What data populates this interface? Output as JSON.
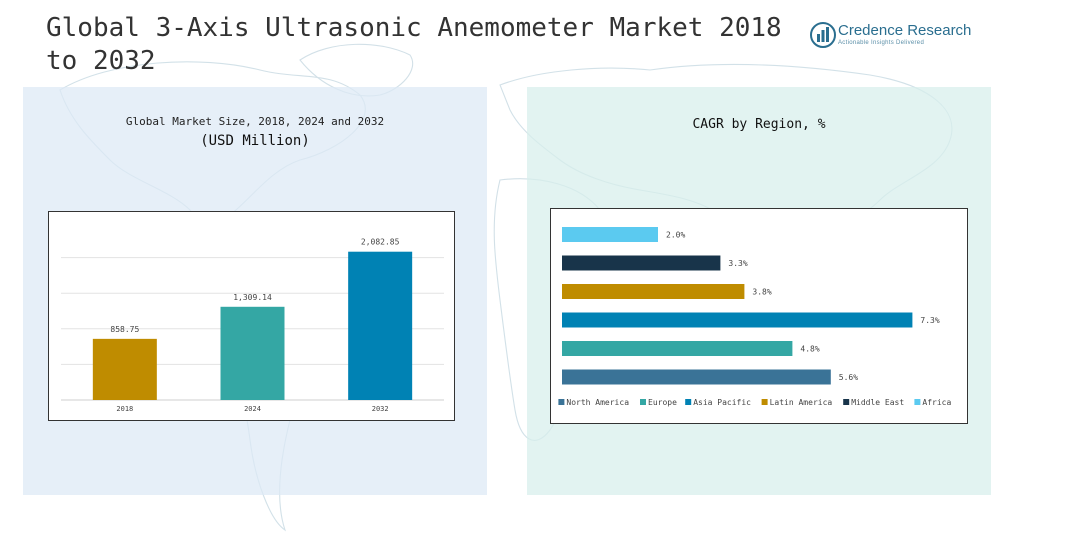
{
  "title": "Global 3-Axis Ultrasonic Anemometer Market 2018 to 2032",
  "logo": {
    "name": "Credence Research",
    "tagline": "Actionable Insights Delivered",
    "icon": "bar-chart-icon"
  },
  "chart_data": [
    {
      "type": "bar",
      "title": "Global Market Size, 2018, 2024 and 2032",
      "subtitle": "(USD Million)",
      "categories": [
        "2018",
        "2024",
        "2032"
      ],
      "values": [
        858.75,
        1309.14,
        2082.85
      ],
      "value_labels": [
        "858.75",
        "1,309.14",
        "2,082.85"
      ],
      "colors": [
        "#bf8c00",
        "#34a7a4",
        "#0082b4"
      ],
      "xlabel": "",
      "ylabel": "",
      "ylim": [
        0,
        2500
      ],
      "grid": true
    },
    {
      "type": "bar",
      "orientation": "horizontal",
      "title": "CAGR by Region, %",
      "categories": [
        "Africa",
        "Middle East",
        "Latin America",
        "Asia Pacific",
        "Europe",
        "North America"
      ],
      "values": [
        2.0,
        3.3,
        3.8,
        7.3,
        4.8,
        5.6
      ],
      "value_labels": [
        "2.0%",
        "3.3%",
        "3.8%",
        "7.3%",
        "4.8%",
        "5.6%"
      ],
      "colors": [
        "#5bcaf0",
        "#18344a",
        "#bf8c00",
        "#0082b4",
        "#34a7a4",
        "#3a7397"
      ],
      "legend": {
        "placement": "bottom",
        "entries": [
          {
            "name": "North America",
            "color": "#3a7397"
          },
          {
            "name": "Europe",
            "color": "#34a7a4"
          },
          {
            "name": "Asia Pacific",
            "color": "#0082b4"
          },
          {
            "name": "Latin America",
            "color": "#bf8c00"
          },
          {
            "name": "Middle East",
            "color": "#18344a"
          },
          {
            "name": "Africa",
            "color": "#5bcaf0"
          }
        ]
      },
      "xlim": [
        0,
        8
      ],
      "grid": false
    }
  ]
}
